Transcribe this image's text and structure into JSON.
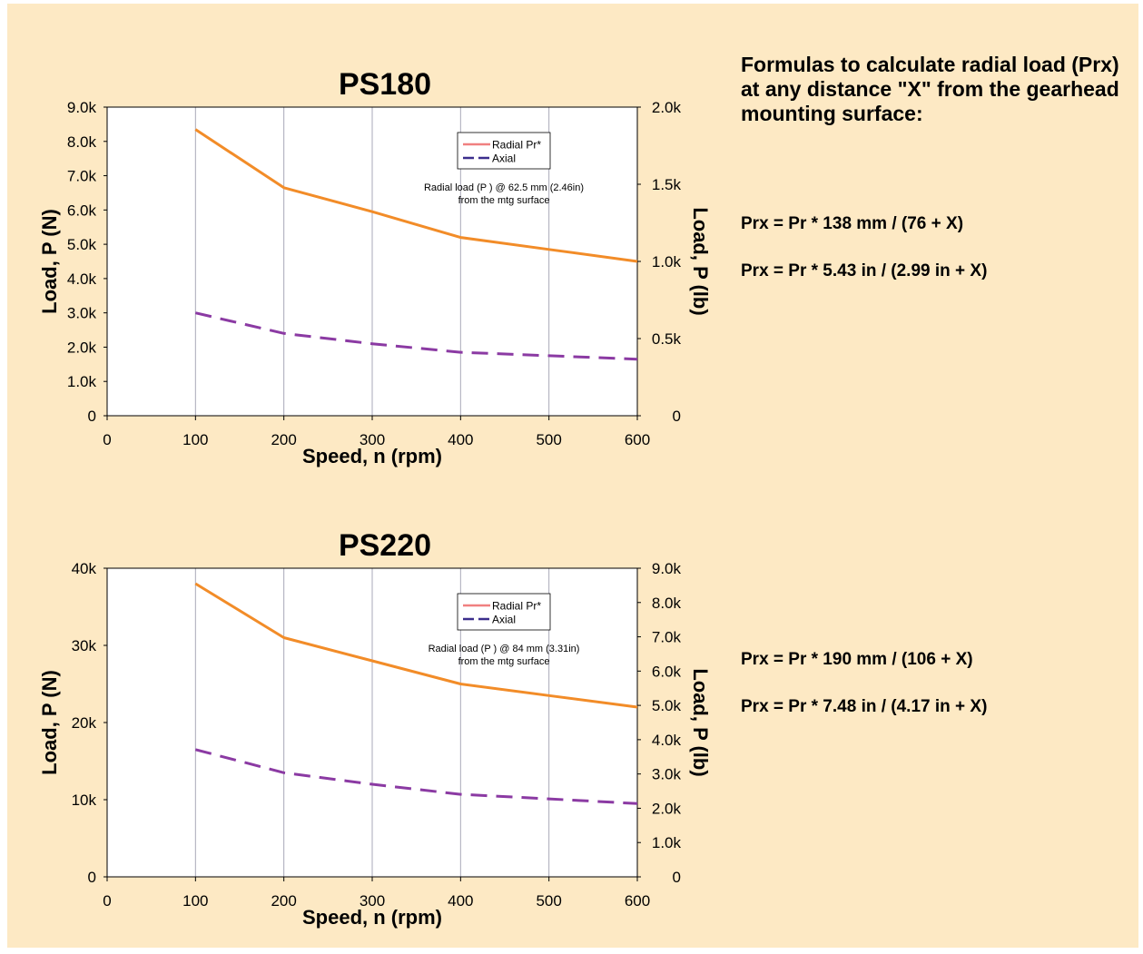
{
  "colors": {
    "background": "#fde9c4",
    "plot_background": "#ffffff",
    "grid": "#a9a9b8",
    "radial_line": "#f28c28",
    "axial_line": "#8b3aa3",
    "legend_radial": "#f08080",
    "legend_axial": "#3b2e8c"
  },
  "formulas": {
    "heading": "Formulas to calculate radial load (Prx) at any distance \"X\" from the gearhead mounting surface:",
    "ps180_mm": "Prx = Pr * 138 mm / (76 + X)",
    "ps180_in": "Prx = Pr * 5.43 in / (2.99 in + X)",
    "ps220_mm": "Prx = Pr * 190 mm / (106 + X)",
    "ps220_in": "Prx = Pr * 7.48 in / (4.17 in + X)"
  },
  "chart_data": [
    {
      "type": "line",
      "title": "PS180",
      "xlabel": "Speed, n (rpm)",
      "ylabel": "Load, P (N)",
      "ylabel_right": "Load, P (lb)",
      "xlim": [
        0,
        600
      ],
      "ylim": [
        0,
        9000
      ],
      "ylim_right": [
        0,
        2000
      ],
      "x_ticks": [
        "0",
        "100",
        "200",
        "300",
        "400",
        "500",
        "600"
      ],
      "y_ticks": [
        "0",
        "1.0k",
        "2.0k",
        "3.0k",
        "4.0k",
        "5.0k",
        "6.0k",
        "7.0k",
        "8.0k",
        "9.0k"
      ],
      "y_right_ticks": [
        "0",
        "0.5k",
        "1.0k",
        "1.5k",
        "2.0k"
      ],
      "grid": true,
      "legend": "top-right",
      "annotation_line1": "Radial load (P ) @ 62.5 mm (2.46in)",
      "annotation_line2": "from the mtg surface",
      "series": [
        {
          "name": "Radial Pr*",
          "style": "solid",
          "x": [
            100,
            200,
            300,
            400,
            500,
            600
          ],
          "values": [
            8350,
            6650,
            5950,
            5200,
            4850,
            4500
          ]
        },
        {
          "name": "Axial",
          "style": "dashed",
          "x": [
            100,
            200,
            300,
            400,
            500,
            600
          ],
          "values": [
            3000,
            2400,
            2100,
            1850,
            1750,
            1650
          ]
        }
      ]
    },
    {
      "type": "line",
      "title": "PS220",
      "xlabel": "Speed, n (rpm)",
      "ylabel": "Load, P (N)",
      "ylabel_right": "Load, P (lb)",
      "xlim": [
        0,
        600
      ],
      "ylim": [
        0,
        40000
      ],
      "ylim_right": [
        0,
        9000
      ],
      "x_ticks": [
        "0",
        "100",
        "200",
        "300",
        "400",
        "500",
        "600"
      ],
      "y_ticks": [
        "0",
        "10k",
        "20k",
        "30k",
        "40k"
      ],
      "y_right_ticks": [
        "0",
        "1.0k",
        "2.0k",
        "3.0k",
        "4.0k",
        "5.0k",
        "6.0k",
        "7.0k",
        "8.0k",
        "9.0k"
      ],
      "grid": true,
      "legend": "top-right",
      "annotation_line1": "Radial load (P ) @ 84 mm (3.31in)",
      "annotation_line2": "from the mtg surface",
      "series": [
        {
          "name": "Radial Pr*",
          "style": "solid",
          "x": [
            100,
            200,
            300,
            400,
            500,
            600
          ],
          "values": [
            38000,
            31000,
            28000,
            25000,
            23500,
            22000
          ]
        },
        {
          "name": "Axial",
          "style": "dashed",
          "x": [
            100,
            200,
            300,
            400,
            500,
            600
          ],
          "values": [
            16500,
            13500,
            12000,
            10700,
            10100,
            9500
          ]
        }
      ]
    }
  ]
}
